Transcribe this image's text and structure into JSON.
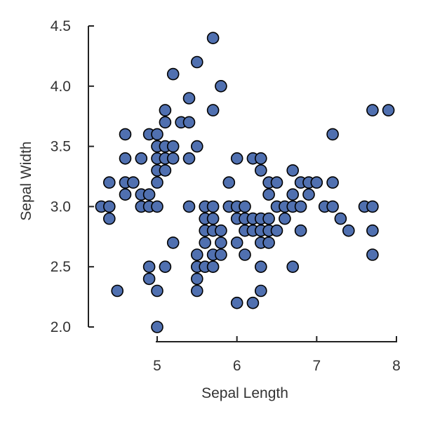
{
  "chart_data": {
    "type": "scatter",
    "title": "",
    "xlabel": "Sepal Length",
    "ylabel": "Sepal Width",
    "xlim": [
      4.2,
      8.0
    ],
    "ylim": [
      2.0,
      4.5
    ],
    "x_ticks": [
      5,
      6,
      7,
      8
    ],
    "x_tick_labels": [
      "5",
      "6",
      "7",
      "8"
    ],
    "y_ticks": [
      2.0,
      2.5,
      3.0,
      3.5,
      4.0,
      4.5
    ],
    "y_tick_labels": [
      "2.0",
      "2.5",
      "3.0",
      "3.5",
      "4.0",
      "4.5"
    ],
    "grid": false,
    "legend": "none",
    "marker_color": "#5070b0",
    "marker_edge_color": "#000000",
    "points": [
      [
        4.3,
        3.0
      ],
      [
        4.4,
        3.0
      ],
      [
        4.4,
        2.9
      ],
      [
        4.4,
        3.2
      ],
      [
        4.5,
        2.3
      ],
      [
        4.6,
        3.6
      ],
      [
        4.6,
        3.4
      ],
      [
        4.6,
        3.2
      ],
      [
        4.6,
        3.1
      ],
      [
        4.7,
        3.2
      ],
      [
        4.8,
        3.4
      ],
      [
        4.8,
        3.1
      ],
      [
        4.8,
        3.0
      ],
      [
        4.9,
        3.6
      ],
      [
        4.9,
        3.1
      ],
      [
        4.9,
        3.0
      ],
      [
        4.9,
        2.5
      ],
      [
        4.9,
        2.4
      ],
      [
        5.0,
        3.6
      ],
      [
        5.0,
        3.5
      ],
      [
        5.0,
        3.4
      ],
      [
        5.0,
        3.3
      ],
      [
        5.0,
        3.2
      ],
      [
        5.0,
        3.0
      ],
      [
        5.0,
        2.3
      ],
      [
        5.0,
        2.0
      ],
      [
        5.1,
        3.8
      ],
      [
        5.1,
        3.7
      ],
      [
        5.1,
        3.5
      ],
      [
        5.1,
        3.4
      ],
      [
        5.1,
        3.3
      ],
      [
        5.1,
        2.5
      ],
      [
        5.2,
        4.1
      ],
      [
        5.2,
        3.5
      ],
      [
        5.2,
        3.4
      ],
      [
        5.2,
        2.7
      ],
      [
        5.3,
        3.7
      ],
      [
        5.4,
        3.9
      ],
      [
        5.4,
        3.7
      ],
      [
        5.4,
        3.4
      ],
      [
        5.4,
        3.0
      ],
      [
        5.5,
        4.2
      ],
      [
        5.5,
        3.5
      ],
      [
        5.5,
        2.6
      ],
      [
        5.5,
        2.5
      ],
      [
        5.5,
        2.4
      ],
      [
        5.5,
        2.3
      ],
      [
        5.6,
        3.0
      ],
      [
        5.6,
        2.9
      ],
      [
        5.6,
        2.8
      ],
      [
        5.6,
        2.7
      ],
      [
        5.6,
        2.5
      ],
      [
        5.7,
        4.4
      ],
      [
        5.7,
        3.8
      ],
      [
        5.7,
        3.0
      ],
      [
        5.7,
        2.9
      ],
      [
        5.7,
        2.8
      ],
      [
        5.7,
        2.6
      ],
      [
        5.7,
        2.5
      ],
      [
        5.8,
        4.0
      ],
      [
        5.8,
        2.8
      ],
      [
        5.8,
        2.7
      ],
      [
        5.8,
        2.6
      ],
      [
        5.9,
        3.2
      ],
      [
        5.9,
        3.0
      ],
      [
        6.0,
        3.4
      ],
      [
        6.0,
        3.0
      ],
      [
        6.0,
        2.9
      ],
      [
        6.0,
        2.7
      ],
      [
        6.0,
        2.2
      ],
      [
        6.1,
        3.0
      ],
      [
        6.1,
        2.9
      ],
      [
        6.1,
        2.8
      ],
      [
        6.1,
        2.6
      ],
      [
        6.2,
        3.4
      ],
      [
        6.2,
        2.9
      ],
      [
        6.2,
        2.8
      ],
      [
        6.2,
        2.2
      ],
      [
        6.3,
        3.4
      ],
      [
        6.3,
        3.3
      ],
      [
        6.3,
        2.9
      ],
      [
        6.3,
        2.8
      ],
      [
        6.3,
        2.7
      ],
      [
        6.3,
        2.5
      ],
      [
        6.3,
        2.3
      ],
      [
        6.4,
        3.2
      ],
      [
        6.4,
        3.1
      ],
      [
        6.4,
        2.9
      ],
      [
        6.4,
        2.8
      ],
      [
        6.4,
        2.7
      ],
      [
        6.5,
        3.2
      ],
      [
        6.5,
        3.0
      ],
      [
        6.5,
        2.8
      ],
      [
        6.6,
        3.0
      ],
      [
        6.6,
        2.9
      ],
      [
        6.7,
        3.3
      ],
      [
        6.7,
        3.1
      ],
      [
        6.7,
        3.0
      ],
      [
        6.7,
        2.5
      ],
      [
        6.8,
        3.2
      ],
      [
        6.8,
        3.0
      ],
      [
        6.8,
        2.8
      ],
      [
        6.9,
        3.2
      ],
      [
        6.9,
        3.1
      ],
      [
        7.0,
        3.2
      ],
      [
        7.1,
        3.0
      ],
      [
        7.2,
        3.6
      ],
      [
        7.2,
        3.2
      ],
      [
        7.2,
        3.0
      ],
      [
        7.3,
        2.9
      ],
      [
        7.4,
        2.8
      ],
      [
        7.6,
        3.0
      ],
      [
        7.7,
        3.8
      ],
      [
        7.7,
        3.0
      ],
      [
        7.7,
        2.8
      ],
      [
        7.7,
        2.6
      ],
      [
        7.9,
        3.8
      ]
    ]
  }
}
